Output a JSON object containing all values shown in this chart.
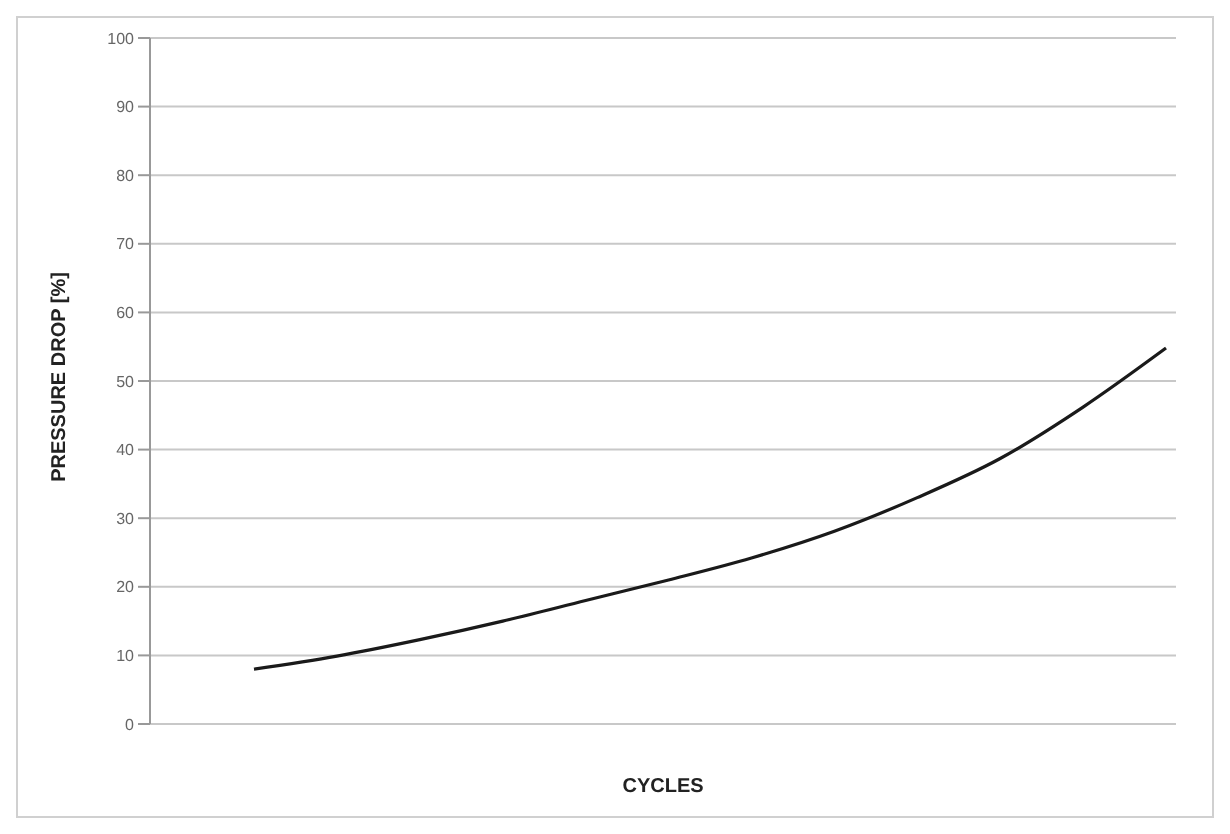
{
  "chart_data": {
    "type": "line",
    "xlabel": "CYCLES",
    "ylabel": "PRESSURE DROP [%]",
    "categories": [
      null,
      null,
      null,
      null,
      null,
      null,
      null,
      null,
      null,
      null,
      null,
      null
    ],
    "series": [
      {
        "color": "#1a1a1a",
        "values": [
          8.0,
          9.9,
          12.3,
          15.0,
          18.0,
          21.0,
          24.2,
          28.1,
          33.0,
          38.7,
          46.2,
          54.8
        ]
      }
    ],
    "ylim": [
      0,
      100
    ],
    "yticks": [
      0,
      10,
      20,
      30,
      40,
      50,
      60,
      70,
      80,
      90,
      100
    ],
    "grid": "y",
    "marker": "none",
    "tick_labels": "y"
  }
}
